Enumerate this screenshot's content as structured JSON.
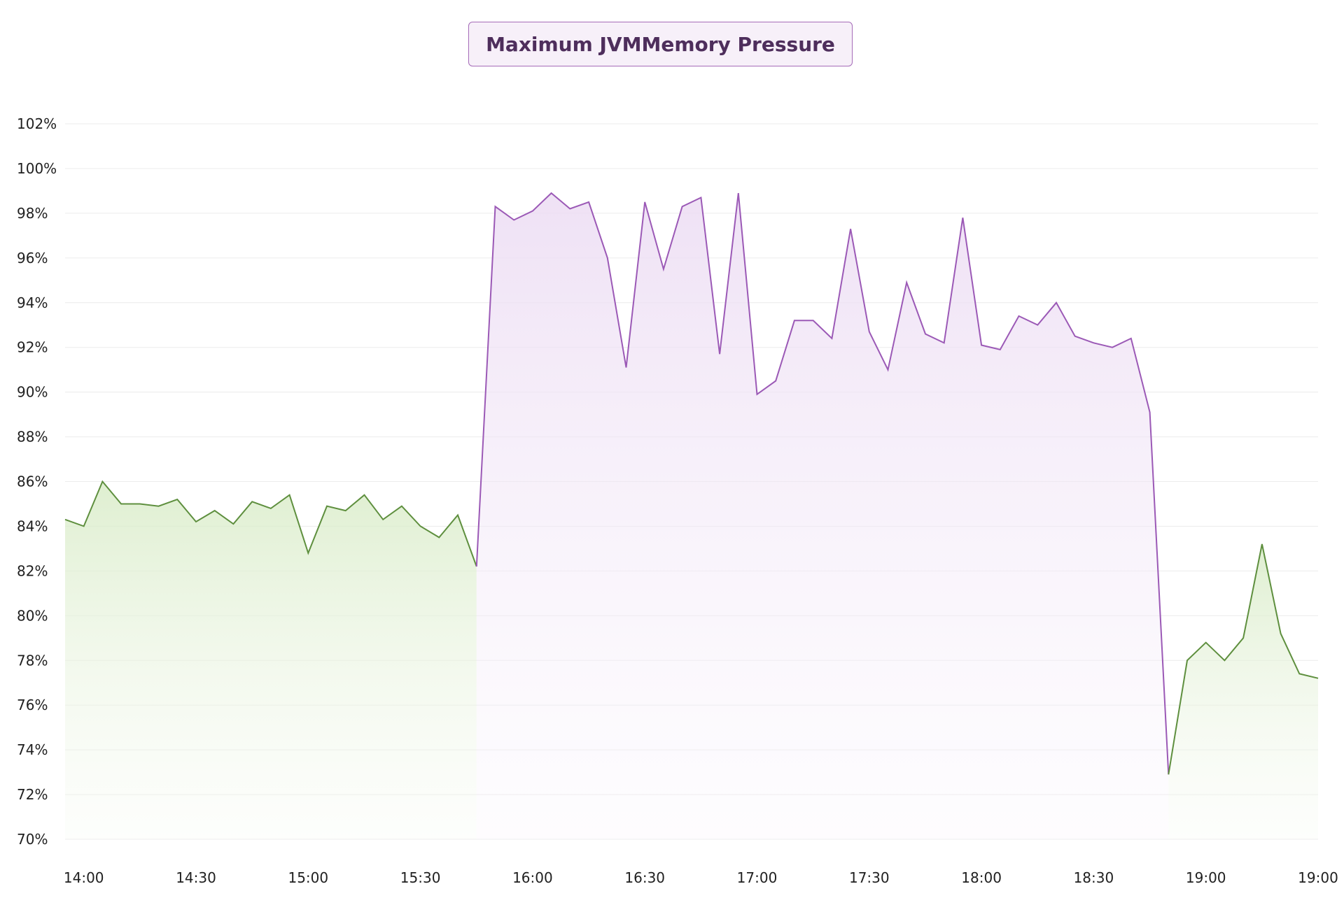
{
  "chart_data": {
    "type": "area",
    "title": "Maximum JVMMemory Pressure",
    "xlabel": "",
    "ylabel": "",
    "ylim": [
      70,
      102
    ],
    "y_ticks": [
      "70%",
      "72%",
      "74%",
      "76%",
      "78%",
      "80%",
      "82%",
      "84%",
      "86%",
      "88%",
      "90%",
      "92%",
      "94%",
      "96%",
      "98%",
      "100%",
      "102%"
    ],
    "x_ticks": [
      "14:00",
      "14:30",
      "15:00",
      "15:30",
      "16:00",
      "16:30",
      "17:00",
      "17:30",
      "18:00",
      "18:30",
      "19:00",
      "19:00"
    ],
    "grid": true,
    "colors": {
      "green": "#5e8f3e",
      "purple": "#9b59b6"
    },
    "points": [
      {
        "t": "13:55",
        "y": 84.3
      },
      {
        "t": "14:00",
        "y": 84.0
      },
      {
        "t": "14:05",
        "y": 86.0
      },
      {
        "t": "14:10",
        "y": 85.0
      },
      {
        "t": "14:15",
        "y": 85.0
      },
      {
        "t": "14:20",
        "y": 84.9
      },
      {
        "t": "14:25",
        "y": 85.2
      },
      {
        "t": "14:30",
        "y": 84.2
      },
      {
        "t": "14:35",
        "y": 84.7
      },
      {
        "t": "14:40",
        "y": 84.1
      },
      {
        "t": "14:45",
        "y": 85.1
      },
      {
        "t": "14:50",
        "y": 84.8
      },
      {
        "t": "14:55",
        "y": 85.4
      },
      {
        "t": "15:00",
        "y": 82.8
      },
      {
        "t": "15:05",
        "y": 84.9
      },
      {
        "t": "15:10",
        "y": 84.7
      },
      {
        "t": "15:15",
        "y": 85.4
      },
      {
        "t": "15:20",
        "y": 84.3
      },
      {
        "t": "15:25",
        "y": 84.9
      },
      {
        "t": "15:30",
        "y": 84.0
      },
      {
        "t": "15:35",
        "y": 83.5
      },
      {
        "t": "15:40",
        "y": 84.5
      },
      {
        "t": "15:45",
        "y": 82.2
      },
      {
        "t": "15:50",
        "y": 98.3
      },
      {
        "t": "15:55",
        "y": 97.7
      },
      {
        "t": "16:00",
        "y": 98.1
      },
      {
        "t": "16:05",
        "y": 98.9
      },
      {
        "t": "16:10",
        "y": 98.2
      },
      {
        "t": "16:15",
        "y": 98.5
      },
      {
        "t": "16:20",
        "y": 96.0
      },
      {
        "t": "16:25",
        "y": 91.1
      },
      {
        "t": "16:30",
        "y": 98.5
      },
      {
        "t": "16:35",
        "y": 95.5
      },
      {
        "t": "16:40",
        "y": 98.3
      },
      {
        "t": "16:45",
        "y": 98.7
      },
      {
        "t": "16:50",
        "y": 91.7
      },
      {
        "t": "16:55",
        "y": 98.9
      },
      {
        "t": "17:00",
        "y": 89.9
      },
      {
        "t": "17:05",
        "y": 90.5
      },
      {
        "t": "17:10",
        "y": 93.2
      },
      {
        "t": "17:15",
        "y": 93.2
      },
      {
        "t": "17:20",
        "y": 92.4
      },
      {
        "t": "17:25",
        "y": 97.3
      },
      {
        "t": "17:30",
        "y": 92.7
      },
      {
        "t": "17:35",
        "y": 91.0
      },
      {
        "t": "17:40",
        "y": 94.9
      },
      {
        "t": "17:45",
        "y": 92.6
      },
      {
        "t": "17:50",
        "y": 92.2
      },
      {
        "t": "17:55",
        "y": 97.8
      },
      {
        "t": "18:00",
        "y": 92.1
      },
      {
        "t": "18:05",
        "y": 91.9
      },
      {
        "t": "18:10",
        "y": 93.4
      },
      {
        "t": "18:15",
        "y": 93.0
      },
      {
        "t": "18:20",
        "y": 94.0
      },
      {
        "t": "18:25",
        "y": 92.5
      },
      {
        "t": "18:30",
        "y": 92.2
      },
      {
        "t": "18:35",
        "y": 92.0
      },
      {
        "t": "18:40",
        "y": 92.4
      },
      {
        "t": "18:45",
        "y": 89.1
      },
      {
        "t": "18:50",
        "y": 72.9
      },
      {
        "t": "18:55",
        "y": 78.0
      },
      {
        "t": "19:00",
        "y": 78.8
      },
      {
        "t": "19:05",
        "y": 78.0
      },
      {
        "t": "19:10",
        "y": 79.0
      },
      {
        "t": "19:15",
        "y": 83.2
      },
      {
        "t": "19:20",
        "y": 79.2
      },
      {
        "t": "19:25",
        "y": 77.4
      },
      {
        "t": "19:30",
        "y": 77.2
      }
    ],
    "segments": [
      {
        "name": "",
        "color": "green",
        "from": "13:55",
        "to": "15:45"
      },
      {
        "name": "",
        "color": "purple",
        "from": "15:45",
        "to": "18:50"
      },
      {
        "name": "",
        "color": "green",
        "from": "18:50",
        "to": "19:30"
      }
    ]
  }
}
